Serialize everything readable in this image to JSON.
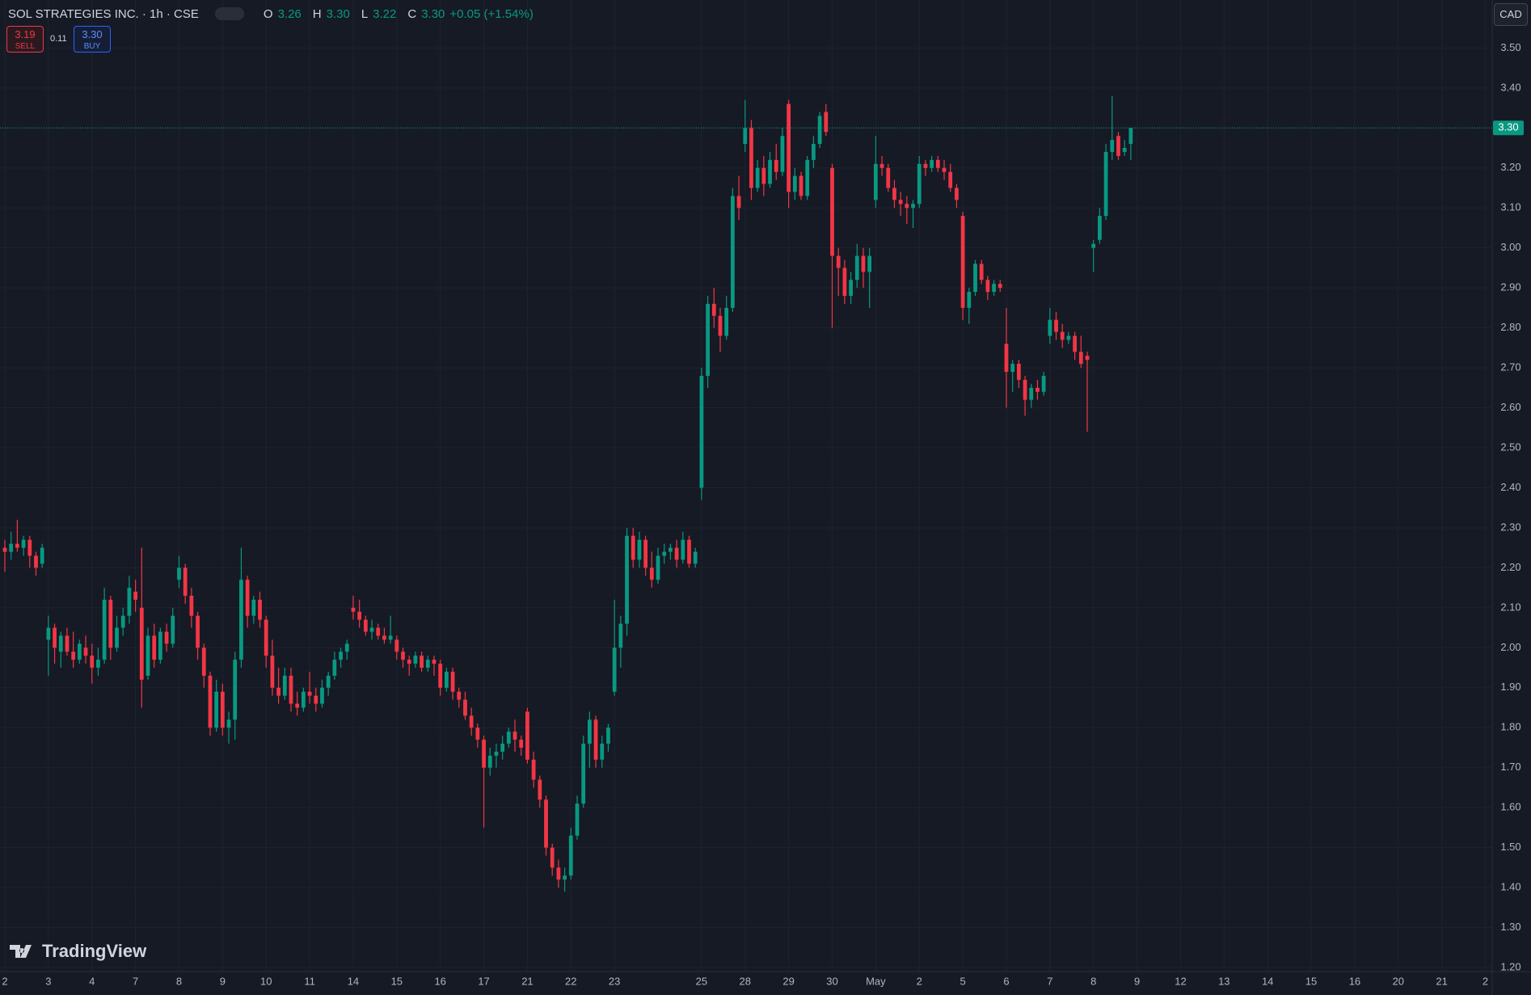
{
  "header": {
    "symbol": "SOL STRATEGIES INC. · 1h · CSE",
    "legend": [
      {
        "key": "O",
        "value": "3.26"
      },
      {
        "key": "H",
        "value": "3.30"
      },
      {
        "key": "L",
        "value": "3.22"
      },
      {
        "key": "C",
        "value": "3.30"
      }
    ],
    "change": "+0.05 (+1.54%)",
    "sell": "3.19",
    "sell_label": "SELL",
    "spread": "0.11",
    "buy": "3.30",
    "buy_label": "BUY",
    "currency": "CAD",
    "watermark": "TradingView"
  },
  "chart_data": {
    "type": "candlestick",
    "up_color": "#089981",
    "down_color": "#f23645",
    "grid": true,
    "ylim": [
      1.19,
      3.62
    ],
    "yticks": [
      {
        "value": 1.2,
        "label": "1.20"
      },
      {
        "value": 1.3,
        "label": "1.30"
      },
      {
        "value": 1.4,
        "label": "1.40"
      },
      {
        "value": 1.5,
        "label": "1.50"
      },
      {
        "value": 1.6,
        "label": "1.60"
      },
      {
        "value": 1.7,
        "label": "1.70"
      },
      {
        "value": 1.8,
        "label": "1.80"
      },
      {
        "value": 1.9,
        "label": "1.90"
      },
      {
        "value": 2.0,
        "label": "2.00"
      },
      {
        "value": 2.1,
        "label": "2.10"
      },
      {
        "value": 2.2,
        "label": "2.20"
      },
      {
        "value": 2.3,
        "label": "2.30"
      },
      {
        "value": 2.4,
        "label": "2.40"
      },
      {
        "value": 2.5,
        "label": "2.50"
      },
      {
        "value": 2.6,
        "label": "2.60"
      },
      {
        "value": 2.7,
        "label": "2.70"
      },
      {
        "value": 2.8,
        "label": "2.80"
      },
      {
        "value": 2.9,
        "label": "2.90"
      },
      {
        "value": 3.0,
        "label": "3.00"
      },
      {
        "value": 3.1,
        "label": "3.10"
      },
      {
        "value": 3.2,
        "label": "3.20"
      },
      {
        "value": 3.3,
        "label": "3.30"
      },
      {
        "value": 3.4,
        "label": "3.40"
      },
      {
        "value": 3.5,
        "label": "3.50"
      }
    ],
    "xlim": [
      -0.78,
      239.1
    ],
    "xticks": [
      {
        "value": 0,
        "label": "2"
      },
      {
        "value": 7,
        "label": "3"
      },
      {
        "value": 14,
        "label": "4"
      },
      {
        "value": 21,
        "label": "7"
      },
      {
        "value": 28,
        "label": "8"
      },
      {
        "value": 35,
        "label": "9"
      },
      {
        "value": 42,
        "label": "10"
      },
      {
        "value": 49,
        "label": "11"
      },
      {
        "value": 56,
        "label": "14"
      },
      {
        "value": 63,
        "label": "15"
      },
      {
        "value": 70,
        "label": "16"
      },
      {
        "value": 77,
        "label": "17"
      },
      {
        "value": 84,
        "label": "21"
      },
      {
        "value": 91,
        "label": "22"
      },
      {
        "value": 98,
        "label": "23"
      },
      {
        "value": 112,
        "label": "25"
      },
      {
        "value": 119,
        "label": "28"
      },
      {
        "value": 126,
        "label": "29"
      },
      {
        "value": 133,
        "label": "30"
      },
      {
        "value": 140,
        "label": "May"
      },
      {
        "value": 147,
        "label": "2"
      },
      {
        "value": 154,
        "label": "5"
      },
      {
        "value": 161,
        "label": "6"
      },
      {
        "value": 168,
        "label": "7"
      },
      {
        "value": 175,
        "label": "8"
      },
      {
        "value": 182,
        "label": "9"
      },
      {
        "value": 189,
        "label": "12"
      },
      {
        "value": 196,
        "label": "13"
      },
      {
        "value": 203,
        "label": "14"
      },
      {
        "value": 210,
        "label": "15"
      },
      {
        "value": 217,
        "label": "16"
      },
      {
        "value": 224,
        "label": "20"
      },
      {
        "value": 231,
        "label": "21"
      },
      {
        "value": 238,
        "label": "2"
      }
    ],
    "last_price": {
      "value": 3.3,
      "label": "3.30"
    },
    "ohlc": [
      [
        2.25,
        2.27,
        2.19,
        2.24
      ],
      [
        2.24,
        2.29,
        2.22,
        2.26
      ],
      [
        2.26,
        2.32,
        2.24,
        2.25
      ],
      [
        2.25,
        2.28,
        2.23,
        2.27
      ],
      [
        2.27,
        2.28,
        2.2,
        2.23
      ],
      [
        2.23,
        2.24,
        2.18,
        2.2
      ],
      [
        2.21,
        2.26,
        2.2,
        2.25
      ],
      [
        2.02,
        2.08,
        1.93,
        2.05
      ],
      [
        2.05,
        2.06,
        1.96,
        2.0
      ],
      [
        1.99,
        2.04,
        1.95,
        2.03
      ],
      [
        2.03,
        2.05,
        1.98,
        1.99
      ],
      [
        1.99,
        2.04,
        1.95,
        1.97
      ],
      [
        1.97,
        2.02,
        1.96,
        2.01
      ],
      [
        2.0,
        2.03,
        1.96,
        1.98
      ],
      [
        1.98,
        2.01,
        1.91,
        1.95
      ],
      [
        1.95,
        2.0,
        1.93,
        1.97
      ],
      [
        1.97,
        2.15,
        1.96,
        2.12
      ],
      [
        2.12,
        2.13,
        1.97,
        2.0
      ],
      [
        2.0,
        2.08,
        1.99,
        2.05
      ],
      [
        2.05,
        2.1,
        2.03,
        2.08
      ],
      [
        2.08,
        2.18,
        2.06,
        2.15
      ],
      [
        2.14,
        2.17,
        2.09,
        2.12
      ],
      [
        2.1,
        2.25,
        1.85,
        1.92
      ],
      [
        1.93,
        2.05,
        1.92,
        2.03
      ],
      [
        2.03,
        2.06,
        1.95,
        1.97
      ],
      [
        1.97,
        2.05,
        1.96,
        2.04
      ],
      [
        2.04,
        2.06,
        1.99,
        2.01
      ],
      [
        2.01,
        2.1,
        2.0,
        2.08
      ],
      [
        2.17,
        2.23,
        2.15,
        2.2
      ],
      [
        2.2,
        2.21,
        2.11,
        2.13
      ],
      [
        2.13,
        2.15,
        2.05,
        2.08
      ],
      [
        2.08,
        2.09,
        1.97,
        2.0
      ],
      [
        2.0,
        2.01,
        1.9,
        1.93
      ],
      [
        1.93,
        1.94,
        1.78,
        1.8
      ],
      [
        1.8,
        1.92,
        1.79,
        1.89
      ],
      [
        1.89,
        1.91,
        1.78,
        1.8
      ],
      [
        1.8,
        1.84,
        1.76,
        1.82
      ],
      [
        1.82,
        1.99,
        1.77,
        1.97
      ],
      [
        1.97,
        2.25,
        1.95,
        2.17
      ],
      [
        2.17,
        2.18,
        2.05,
        2.08
      ],
      [
        2.08,
        2.13,
        2.06,
        2.12
      ],
      [
        2.12,
        2.14,
        2.05,
        2.07
      ],
      [
        2.07,
        2.08,
        1.95,
        1.98
      ],
      [
        1.98,
        2.02,
        1.88,
        1.9
      ],
      [
        1.9,
        1.95,
        1.86,
        1.88
      ],
      [
        1.88,
        1.95,
        1.87,
        1.93
      ],
      [
        1.93,
        1.95,
        1.84,
        1.86
      ],
      [
        1.86,
        1.89,
        1.83,
        1.85
      ],
      [
        1.85,
        1.9,
        1.84,
        1.89
      ],
      [
        1.89,
        1.94,
        1.86,
        1.88
      ],
      [
        1.88,
        1.9,
        1.84,
        1.86
      ],
      [
        1.86,
        1.92,
        1.85,
        1.9
      ],
      [
        1.9,
        1.94,
        1.88,
        1.93
      ],
      [
        1.93,
        1.99,
        1.92,
        1.97
      ],
      [
        1.97,
        2.0,
        1.95,
        1.99
      ],
      [
        1.99,
        2.02,
        1.97,
        2.01
      ],
      [
        2.1,
        2.13,
        2.07,
        2.09
      ],
      [
        2.09,
        2.12,
        2.05,
        2.07
      ],
      [
        2.07,
        2.08,
        2.03,
        2.04
      ],
      [
        2.04,
        2.07,
        2.02,
        2.05
      ],
      [
        2.05,
        2.06,
        2.02,
        2.03
      ],
      [
        2.03,
        2.05,
        2.01,
        2.02
      ],
      [
        2.02,
        2.08,
        2.01,
        2.03
      ],
      [
        2.02,
        2.03,
        1.97,
        1.99
      ],
      [
        1.99,
        2.0,
        1.95,
        1.97
      ],
      [
        1.97,
        1.98,
        1.93,
        1.96
      ],
      [
        1.96,
        1.99,
        1.95,
        1.98
      ],
      [
        1.98,
        1.99,
        1.94,
        1.95
      ],
      [
        1.95,
        1.98,
        1.94,
        1.97
      ],
      [
        1.97,
        1.98,
        1.93,
        1.96
      ],
      [
        1.96,
        1.97,
        1.88,
        1.9
      ],
      [
        1.9,
        1.95,
        1.89,
        1.94
      ],
      [
        1.94,
        1.95,
        1.87,
        1.89
      ],
      [
        1.89,
        1.9,
        1.85,
        1.87
      ],
      [
        1.87,
        1.89,
        1.82,
        1.83
      ],
      [
        1.83,
        1.85,
        1.78,
        1.8
      ],
      [
        1.8,
        1.81,
        1.75,
        1.77
      ],
      [
        1.77,
        1.78,
        1.55,
        1.7
      ],
      [
        1.7,
        1.75,
        1.68,
        1.73
      ],
      [
        1.73,
        1.76,
        1.7,
        1.74
      ],
      [
        1.74,
        1.78,
        1.72,
        1.76
      ],
      [
        1.76,
        1.8,
        1.75,
        1.79
      ],
      [
        1.79,
        1.82,
        1.74,
        1.77
      ],
      [
        1.77,
        1.78,
        1.73,
        1.75
      ],
      [
        1.84,
        1.85,
        1.71,
        1.72
      ],
      [
        1.72,
        1.74,
        1.65,
        1.67
      ],
      [
        1.67,
        1.68,
        1.6,
        1.62
      ],
      [
        1.62,
        1.63,
        1.48,
        1.5
      ],
      [
        1.5,
        1.51,
        1.43,
        1.45
      ],
      [
        1.45,
        1.47,
        1.4,
        1.42
      ],
      [
        1.42,
        1.45,
        1.39,
        1.43
      ],
      [
        1.43,
        1.55,
        1.42,
        1.53
      ],
      [
        1.53,
        1.63,
        1.52,
        1.61
      ],
      [
        1.61,
        1.78,
        1.6,
        1.76
      ],
      [
        1.76,
        1.84,
        1.7,
        1.82
      ],
      [
        1.82,
        1.83,
        1.7,
        1.72
      ],
      [
        1.72,
        1.78,
        1.7,
        1.76
      ],
      [
        1.76,
        1.81,
        1.74,
        1.8
      ],
      [
        1.89,
        2.12,
        1.88,
        2.0
      ],
      [
        2.0,
        2.08,
        1.95,
        2.06
      ],
      [
        2.06,
        2.3,
        2.03,
        2.28
      ],
      [
        2.28,
        2.3,
        2.2,
        2.22
      ],
      [
        2.22,
        2.29,
        2.2,
        2.27
      ],
      [
        2.27,
        2.28,
        2.18,
        2.2
      ],
      [
        2.2,
        2.24,
        2.15,
        2.17
      ],
      [
        2.17,
        2.25,
        2.16,
        2.23
      ],
      [
        2.23,
        2.26,
        2.21,
        2.24
      ],
      [
        2.24,
        2.26,
        2.22,
        2.25
      ],
      [
        2.25,
        2.27,
        2.2,
        2.22
      ],
      [
        2.22,
        2.29,
        2.21,
        2.27
      ],
      [
        2.27,
        2.28,
        2.2,
        2.21
      ],
      [
        2.21,
        2.25,
        2.2,
        2.24
      ],
      [
        2.4,
        2.7,
        2.37,
        2.68
      ],
      [
        2.68,
        2.88,
        2.65,
        2.86
      ],
      [
        2.86,
        2.9,
        2.8,
        2.83
      ],
      [
        2.83,
        2.85,
        2.74,
        2.78
      ],
      [
        2.78,
        2.88,
        2.77,
        2.85
      ],
      [
        2.85,
        3.15,
        2.84,
        3.13
      ],
      [
        3.13,
        3.18,
        3.07,
        3.1
      ],
      [
        3.26,
        3.37,
        3.24,
        3.3
      ],
      [
        3.3,
        3.32,
        3.12,
        3.15
      ],
      [
        3.15,
        3.22,
        3.14,
        3.2
      ],
      [
        3.2,
        3.23,
        3.13,
        3.16
      ],
      [
        3.16,
        3.24,
        3.15,
        3.22
      ],
      [
        3.22,
        3.26,
        3.17,
        3.19
      ],
      [
        3.19,
        3.3,
        3.18,
        3.28
      ],
      [
        3.36,
        3.37,
        3.1,
        3.14
      ],
      [
        3.14,
        3.2,
        3.12,
        3.18
      ],
      [
        3.18,
        3.19,
        3.12,
        3.13
      ],
      [
        3.13,
        3.23,
        3.12,
        3.22
      ],
      [
        3.22,
        3.28,
        3.2,
        3.26
      ],
      [
        3.26,
        3.34,
        3.25,
        3.33
      ],
      [
        3.34,
        3.36,
        3.28,
        3.29
      ],
      [
        3.2,
        3.21,
        2.8,
        2.98
      ],
      [
        2.98,
        3.0,
        2.88,
        2.95
      ],
      [
        2.95,
        2.97,
        2.86,
        2.88
      ],
      [
        2.88,
        2.94,
        2.86,
        2.92
      ],
      [
        2.92,
        3.01,
        2.9,
        2.98
      ],
      [
        2.98,
        3.0,
        2.9,
        2.94
      ],
      [
        2.94,
        3.0,
        2.85,
        2.98
      ],
      [
        3.12,
        3.28,
        3.1,
        3.21
      ],
      [
        3.21,
        3.23,
        3.18,
        3.2
      ],
      [
        3.2,
        3.21,
        3.14,
        3.15
      ],
      [
        3.15,
        3.17,
        3.1,
        3.12
      ],
      [
        3.12,
        3.14,
        3.08,
        3.11
      ],
      [
        3.11,
        3.13,
        3.06,
        3.1
      ],
      [
        3.1,
        3.12,
        3.05,
        3.11
      ],
      [
        3.11,
        3.23,
        3.1,
        3.21
      ],
      [
        3.21,
        3.22,
        3.18,
        3.2
      ],
      [
        3.2,
        3.23,
        3.19,
        3.22
      ],
      [
        3.22,
        3.23,
        3.19,
        3.2
      ],
      [
        3.2,
        3.22,
        3.17,
        3.19
      ],
      [
        3.19,
        3.21,
        3.14,
        3.15
      ],
      [
        3.15,
        3.16,
        3.1,
        3.12
      ],
      [
        3.08,
        3.09,
        2.82,
        2.85
      ],
      [
        2.85,
        2.9,
        2.81,
        2.89
      ],
      [
        2.89,
        2.97,
        2.88,
        2.96
      ],
      [
        2.96,
        2.97,
        2.91,
        2.92
      ],
      [
        2.92,
        2.93,
        2.87,
        2.89
      ],
      [
        2.89,
        2.92,
        2.88,
        2.91
      ],
      [
        2.91,
        2.92,
        2.89,
        2.9
      ],
      [
        2.76,
        2.85,
        2.6,
        2.69
      ],
      [
        2.69,
        2.72,
        2.64,
        2.71
      ],
      [
        2.71,
        2.72,
        2.65,
        2.67
      ],
      [
        2.67,
        2.68,
        2.58,
        2.62
      ],
      [
        2.62,
        2.66,
        2.6,
        2.65
      ],
      [
        2.65,
        2.67,
        2.62,
        2.64
      ],
      [
        2.64,
        2.69,
        2.63,
        2.68
      ],
      [
        2.78,
        2.85,
        2.76,
        2.82
      ],
      [
        2.82,
        2.84,
        2.77,
        2.79
      ],
      [
        2.79,
        2.81,
        2.75,
        2.77
      ],
      [
        2.77,
        2.79,
        2.76,
        2.78
      ],
      [
        2.78,
        2.79,
        2.72,
        2.74
      ],
      [
        2.74,
        2.78,
        2.7,
        2.71
      ],
      [
        2.73,
        2.74,
        2.54,
        2.72
      ],
      [
        3.0,
        3.02,
        2.94,
        3.01
      ],
      [
        3.02,
        3.1,
        3.01,
        3.08
      ],
      [
        3.08,
        3.26,
        3.07,
        3.24
      ],
      [
        3.24,
        3.38,
        3.22,
        3.27
      ],
      [
        3.28,
        3.29,
        3.22,
        3.23
      ],
      [
        3.24,
        3.27,
        3.23,
        3.25
      ],
      [
        3.26,
        3.3,
        3.22,
        3.3
      ]
    ]
  }
}
